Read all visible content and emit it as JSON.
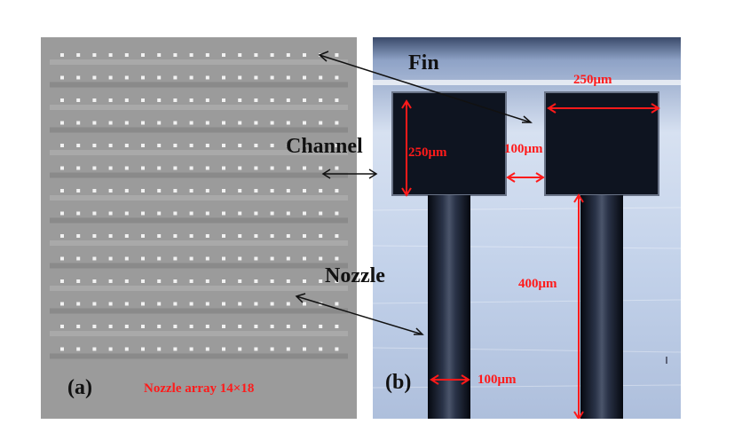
{
  "figure": {
    "panel_a": {
      "tag": "(a)",
      "caption": "Nozzle array  14×18",
      "nozzle_rows": 14,
      "nozzle_cols": 18
    },
    "panel_b": {
      "tag": "(b)",
      "fin_width": "250μm",
      "fin_height": "250μm",
      "channel_gap": "100μm",
      "nozzle_length": "400μm",
      "nozzle_diameter": "100μm"
    },
    "callouts": {
      "fin": "Fin",
      "channel": "Channel",
      "nozzle": "Nozzle"
    }
  },
  "colors": {
    "annotation_red": "#ff1a1a",
    "arrow_black": "#111111",
    "micrograph_gray": "#9b9b9b",
    "micrograph_blue": "#c9d6ea",
    "structure_dark": "#0e1420"
  }
}
